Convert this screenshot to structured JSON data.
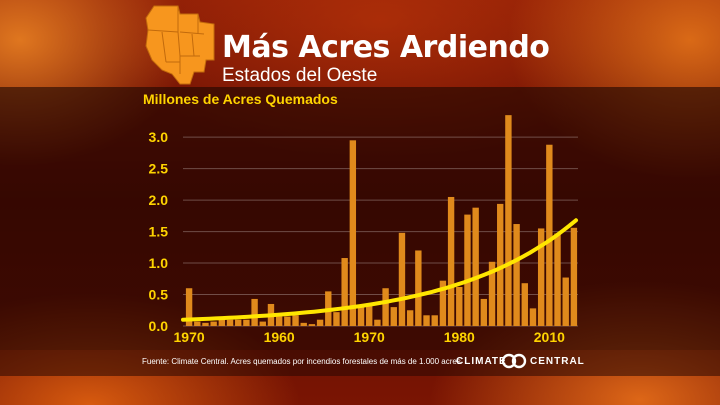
{
  "header": {
    "title": "Más Acres Ardiendo",
    "subtitle": "Estados del Oeste"
  },
  "footer": {
    "source": "Fuente: Climate Central. Acres quemados por incendios forestales de más de 1.000 acres",
    "logo_left": "CLIMATE",
    "logo_right": "CENTRAL"
  },
  "colors": {
    "bar": "#e08a1c",
    "trend": "#ffe600",
    "axis_text": "#ffd400",
    "grid": "#ffffff",
    "map_fill": "#f7961e"
  },
  "icons": {
    "map": "western-us-states-map-icon",
    "logo": "climate-central-logo-icon"
  },
  "chart_data": {
    "type": "bar",
    "ylabel": "Millones de Acres Quemados",
    "xlabel": "",
    "x_tick_labels": [
      "1970",
      "1960",
      "1970",
      "1980",
      "2010"
    ],
    "y_tick_labels": [
      "0.0",
      "0.5",
      "1.0",
      "1.5",
      "2.0",
      "2.5",
      "3.0"
    ],
    "ylim": [
      0,
      3.4
    ],
    "grid": true,
    "series": [
      {
        "values": [
          0.6,
          0.07,
          0.05,
          0.07,
          0.1,
          0.1,
          0.1,
          0.1,
          0.43,
          0.07,
          0.35,
          0.15,
          0.15,
          0.17,
          0.05,
          0.03,
          0.1,
          0.55,
          0.22,
          1.08,
          2.95,
          0.33,
          0.35,
          0.1,
          0.6,
          0.3,
          1.48,
          0.25,
          1.2,
          0.17,
          0.17,
          0.72,
          2.05,
          0.62,
          1.77,
          1.88,
          0.43,
          1.02,
          1.94,
          3.35,
          1.62,
          0.68,
          0.28,
          1.55,
          2.88,
          1.47,
          0.77,
          1.56
        ]
      }
    ],
    "trend": {
      "label": "",
      "start": 0.1,
      "end": 1.68,
      "growth": 3.2
    }
  }
}
